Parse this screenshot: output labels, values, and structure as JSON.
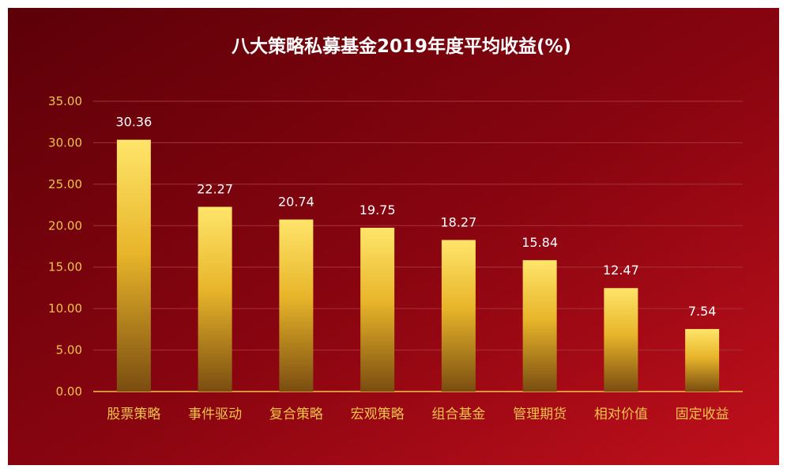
{
  "chart_data": {
    "type": "bar",
    "title": "八大策略私募基金2019年度平均收益(%)",
    "categories": [
      "股票策略",
      "事件驱动",
      "复合策略",
      "宏观策略",
      "组合基金",
      "管理期货",
      "相对价值",
      "固定收益"
    ],
    "values": [
      30.36,
      22.27,
      20.74,
      19.75,
      18.27,
      15.84,
      12.47,
      7.54
    ],
    "value_labels": [
      "30.36",
      "22.27",
      "20.74",
      "19.75",
      "18.27",
      "15.84",
      "12.47",
      "7.54"
    ],
    "y_ticks": [
      "0.00",
      "5.00",
      "10.00",
      "15.00",
      "20.00",
      "25.00",
      "30.00",
      "35.00"
    ],
    "ylim": [
      0,
      35
    ],
    "grid": true,
    "legend": "none"
  },
  "colors": {
    "background_dark": "#5c0008",
    "background_mid": "#8a0510",
    "background_light": "#c0101c",
    "bar_top": "#ffe56a",
    "bar_mid": "#e8b52a",
    "bar_bottom": "#7a4d10",
    "axis_text": "#f0c44a",
    "title_text": "#ffffff",
    "value_text": "#ffffff",
    "grid_line": "#a8323a",
    "axis_line": "#f0c44a"
  }
}
